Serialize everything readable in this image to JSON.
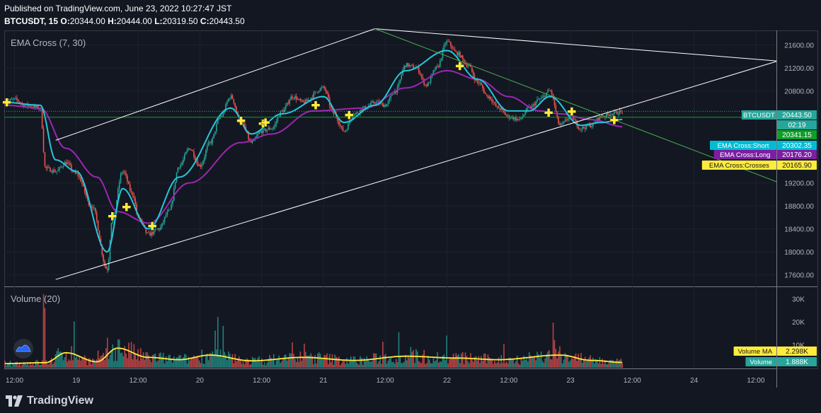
{
  "header": {
    "published": "Published on TradingView.com, June 23, 2022 10:27:47 JST",
    "symbol": "BTCUSDT, 15",
    "o_label": "O:",
    "o_value": "20344.00",
    "h_label": "H:",
    "h_value": "20444.00",
    "l_label": "L:",
    "l_value": "20319.50",
    "c_label": "C:",
    "c_value": "20443.50"
  },
  "indicators": {
    "ema_title": "EMA Cross (7, 30)",
    "volume_title": "Volume (20)"
  },
  "colors": {
    "background": "#131722",
    "grid": "#1e222d",
    "up": "#26a69a",
    "down": "#ef5350",
    "ema_short": "#26c6da",
    "ema_long": "#9c27b0",
    "crosses": "#ffeb3b",
    "trendline": "#4caf50",
    "channel": "#ffffff",
    "volume_ma": "#ffeb3b"
  },
  "price_axis": {
    "ticks": [
      "21600.00",
      "21200.00",
      "20800.00",
      "19200.00",
      "18800.00",
      "18400.00",
      "18000.00",
      "17600.00"
    ]
  },
  "price_labels": [
    {
      "key": "btc",
      "name": "BTCUSDT",
      "value": "20443.50",
      "bg": "#26a69a"
    },
    {
      "key": "timer",
      "name": "",
      "value": "02:19",
      "bg": "#26a69a"
    },
    {
      "key": "line",
      "name": "",
      "value": "20341.15",
      "bg": "#0c9f2a"
    },
    {
      "key": "short",
      "name": "EMA Cross:Short",
      "value": "20302.35",
      "bg": "#00bcd4"
    },
    {
      "key": "long",
      "name": "EMA Cross:Long",
      "value": "20176.20",
      "bg": "#7b1fa2"
    },
    {
      "key": "crosses",
      "name": "EMA Cross:Crosses",
      "value": "20165.90",
      "bg": "#ffeb3b"
    }
  ],
  "volume_axis": {
    "ticks": [
      "30K",
      "20K",
      "10K"
    ]
  },
  "volume_labels": [
    {
      "key": "vma",
      "name": "Volume MA",
      "value": "2.298K",
      "bg": "#ffeb3b"
    },
    {
      "key": "vol",
      "name": "Volume",
      "value": "1.888K",
      "bg": "#26a69a"
    }
  ],
  "time_axis": {
    "ticks": [
      "12:00",
      "19",
      "12:00",
      "20",
      "12:00",
      "21",
      "12:00",
      "22",
      "12:00",
      "23",
      "12:00",
      "24",
      "12:00"
    ]
  },
  "footer": {
    "brand": "TradingView"
  },
  "chart_data": {
    "type": "candlestick",
    "title": "BTCUSDT, 15",
    "ylim": [
      17400,
      21850
    ],
    "x_range": [
      "2022-06-18 10:00",
      "2022-06-24 16:00"
    ],
    "volume_ylim": [
      0,
      35000
    ],
    "price_anchors": [
      [
        "2022-06-18 10:00",
        20600
      ],
      [
        "2022-06-18 12:00",
        20650
      ],
      [
        "2022-06-18 14:00",
        20550
      ],
      [
        "2022-06-18 17:00",
        20500
      ],
      [
        "2022-06-18 18:00",
        19450
      ],
      [
        "2022-06-18 20:00",
        19400
      ],
      [
        "2022-06-18 22:00",
        19550
      ],
      [
        "2022-06-19 00:00",
        19350
      ],
      [
        "2022-06-19 03:00",
        18800
      ],
      [
        "2022-06-19 06:00",
        17700
      ],
      [
        "2022-06-19 07:00",
        18600
      ],
      [
        "2022-06-19 09:00",
        19400
      ],
      [
        "2022-06-19 11:00",
        19000
      ],
      [
        "2022-06-19 12:00",
        18600
      ],
      [
        "2022-06-19 14:00",
        18300
      ],
      [
        "2022-06-19 16:00",
        18400
      ],
      [
        "2022-06-19 18:00",
        18700
      ],
      [
        "2022-06-19 20:00",
        19500
      ],
      [
        "2022-06-19 22:00",
        19800
      ],
      [
        "2022-06-20 00:00",
        19500
      ],
      [
        "2022-06-20 02:00",
        19900
      ],
      [
        "2022-06-20 04:00",
        20350
      ],
      [
        "2022-06-20 06:00",
        20700
      ],
      [
        "2022-06-20 08:00",
        20250
      ],
      [
        "2022-06-20 10:00",
        19900
      ],
      [
        "2022-06-20 12:00",
        20100
      ],
      [
        "2022-06-20 14:00",
        20150
      ],
      [
        "2022-06-20 16:00",
        20450
      ],
      [
        "2022-06-20 18:00",
        20700
      ],
      [
        "2022-06-20 20:00",
        20600
      ],
      [
        "2022-06-21 00:00",
        20850
      ],
      [
        "2022-06-21 02:00",
        20400
      ],
      [
        "2022-06-21 04:00",
        20100
      ],
      [
        "2022-06-21 06:00",
        20400
      ],
      [
        "2022-06-21 08:00",
        20500
      ],
      [
        "2022-06-21 10:00",
        20600
      ],
      [
        "2022-06-21 12:00",
        20550
      ],
      [
        "2022-06-21 14:00",
        20800
      ],
      [
        "2022-06-21 16:00",
        21250
      ],
      [
        "2022-06-21 18:00",
        21200
      ],
      [
        "2022-06-21 20:00",
        20900
      ],
      [
        "2022-06-21 22:00",
        21200
      ],
      [
        "2022-06-22 00:00",
        21650
      ],
      [
        "2022-06-22 02:00",
        21450
      ],
      [
        "2022-06-22 04:00",
        21250
      ],
      [
        "2022-06-22 06:00",
        20950
      ],
      [
        "2022-06-22 08:00",
        20700
      ],
      [
        "2022-06-22 10:00",
        20500
      ],
      [
        "2022-06-22 12:00",
        20350
      ],
      [
        "2022-06-22 14:00",
        20300
      ],
      [
        "2022-06-22 16:00",
        20500
      ],
      [
        "2022-06-22 18:00",
        20650
      ],
      [
        "2022-06-22 20:00",
        20800
      ],
      [
        "2022-06-22 22:00",
        20200
      ],
      [
        "2022-06-23 00:00",
        20350
      ],
      [
        "2022-06-23 02:00",
        20150
      ],
      [
        "2022-06-23 04:00",
        20200
      ],
      [
        "2022-06-23 06:00",
        20350
      ],
      [
        "2022-06-23 08:00",
        20400
      ],
      [
        "2022-06-23 10:15",
        20443
      ]
    ],
    "ema_short_anchors": [
      [
        "2022-06-18 10:00",
        20600
      ],
      [
        "2022-06-18 17:00",
        20550
      ],
      [
        "2022-06-18 20:00",
        19600
      ],
      [
        "2022-06-19 00:00",
        19400
      ],
      [
        "2022-06-19 06:00",
        18000
      ],
      [
        "2022-06-19 09:00",
        19100
      ],
      [
        "2022-06-19 14:00",
        18400
      ],
      [
        "2022-06-19 20:00",
        19300
      ],
      [
        "2022-06-20 06:00",
        20500
      ],
      [
        "2022-06-20 10:00",
        20050
      ],
      [
        "2022-06-20 16:00",
        20400
      ],
      [
        "2022-06-21 00:00",
        20700
      ],
      [
        "2022-06-21 04:00",
        20250
      ],
      [
        "2022-06-21 10:00",
        20550
      ],
      [
        "2022-06-21 16:00",
        21150
      ],
      [
        "2022-06-22 00:00",
        21500
      ],
      [
        "2022-06-22 06:00",
        21000
      ],
      [
        "2022-06-22 12:00",
        20450
      ],
      [
        "2022-06-22 16:00",
        20450
      ],
      [
        "2022-06-22 20:00",
        20700
      ],
      [
        "2022-06-23 02:00",
        20200
      ],
      [
        "2022-06-23 06:00",
        20250
      ],
      [
        "2022-06-23 10:15",
        20302
      ]
    ],
    "ema_long_anchors": [
      [
        "2022-06-18 10:00",
        20550
      ],
      [
        "2022-06-18 17:00",
        20500
      ],
      [
        "2022-06-18 22:00",
        19800
      ],
      [
        "2022-06-19 04:00",
        19300
      ],
      [
        "2022-06-19 08:00",
        18700
      ],
      [
        "2022-06-19 14:00",
        18500
      ],
      [
        "2022-06-19 22:00",
        19200
      ],
      [
        "2022-06-20 08:00",
        19900
      ],
      [
        "2022-06-20 14:00",
        20050
      ],
      [
        "2022-06-20 22:00",
        20450
      ],
      [
        "2022-06-21 08:00",
        20500
      ],
      [
        "2022-06-21 16:00",
        20850
      ],
      [
        "2022-06-22 00:00",
        21150
      ],
      [
        "2022-06-22 06:00",
        21000
      ],
      [
        "2022-06-22 12:00",
        20700
      ],
      [
        "2022-06-22 18:00",
        20450
      ],
      [
        "2022-06-22 22:00",
        20400
      ],
      [
        "2022-06-23 04:00",
        20300
      ],
      [
        "2022-06-23 10:15",
        20176
      ]
    ],
    "crosses": [
      [
        "2022-06-18 10:30",
        20600
      ],
      [
        "2022-06-19 07:00",
        18620
      ],
      [
        "2022-06-19 09:45",
        18780
      ],
      [
        "2022-06-19 14:45",
        18450
      ],
      [
        "2022-06-20 08:00",
        20280
      ],
      [
        "2022-06-20 12:15",
        20230
      ],
      [
        "2022-06-20 12:45",
        20250
      ],
      [
        "2022-06-20 22:30",
        20550
      ],
      [
        "2022-06-21 05:00",
        20380
      ],
      [
        "2022-06-22 02:30",
        21230
      ],
      [
        "2022-06-22 19:45",
        20420
      ],
      [
        "2022-06-23 00:15",
        20440
      ],
      [
        "2022-06-23 08:30",
        20290
      ]
    ],
    "horizontal_lines": [
      20443.5,
      20341.15
    ],
    "channel_upper": [
      [
        "2022-06-18 20:00",
        19940
      ],
      [
        "2022-06-21 10:00",
        21880
      ],
      [
        "2022-06-24 16:00",
        21320
      ]
    ],
    "channel_lower": [
      [
        "2022-06-18 20:00",
        17520
      ],
      [
        "2022-06-24 16:00",
        21310
      ]
    ],
    "trendline": [
      [
        "2022-06-21 10:00",
        21880
      ],
      [
        "2022-06-24 16:00",
        19220
      ]
    ],
    "volume_ma_anchors": [
      [
        "2022-06-18 10:00",
        1800
      ],
      [
        "2022-06-18 18:00",
        2200
      ],
      [
        "2022-06-18 22:00",
        6500
      ],
      [
        "2022-06-19 04:00",
        2600
      ],
      [
        "2022-06-19 08:00",
        8500
      ],
      [
        "2022-06-19 14:00",
        4500
      ],
      [
        "2022-06-19 20:00",
        3500
      ],
      [
        "2022-06-20 02:00",
        5500
      ],
      [
        "2022-06-20 10:00",
        3000
      ],
      [
        "2022-06-20 20:00",
        4500
      ],
      [
        "2022-06-21 06:00",
        3200
      ],
      [
        "2022-06-21 16:00",
        5000
      ],
      [
        "2022-06-22 02:00",
        4200
      ],
      [
        "2022-06-22 10:00",
        3500
      ],
      [
        "2022-06-22 22:00",
        5500
      ],
      [
        "2022-06-23 04:00",
        3200
      ],
      [
        "2022-06-23 10:15",
        2298
      ]
    ],
    "volume_spikes": [
      [
        "2022-06-18 17:45",
        32000
      ],
      [
        "2022-06-18 18:00",
        26000
      ],
      [
        "2022-06-20 03:30",
        22000
      ],
      [
        "2022-06-19 06:00",
        13000
      ],
      [
        "2022-06-20 18:00",
        11000
      ],
      [
        "2022-06-21 17:00",
        9000
      ],
      [
        "2022-06-22 21:00",
        12000
      ]
    ],
    "last_volume": 1888
  }
}
